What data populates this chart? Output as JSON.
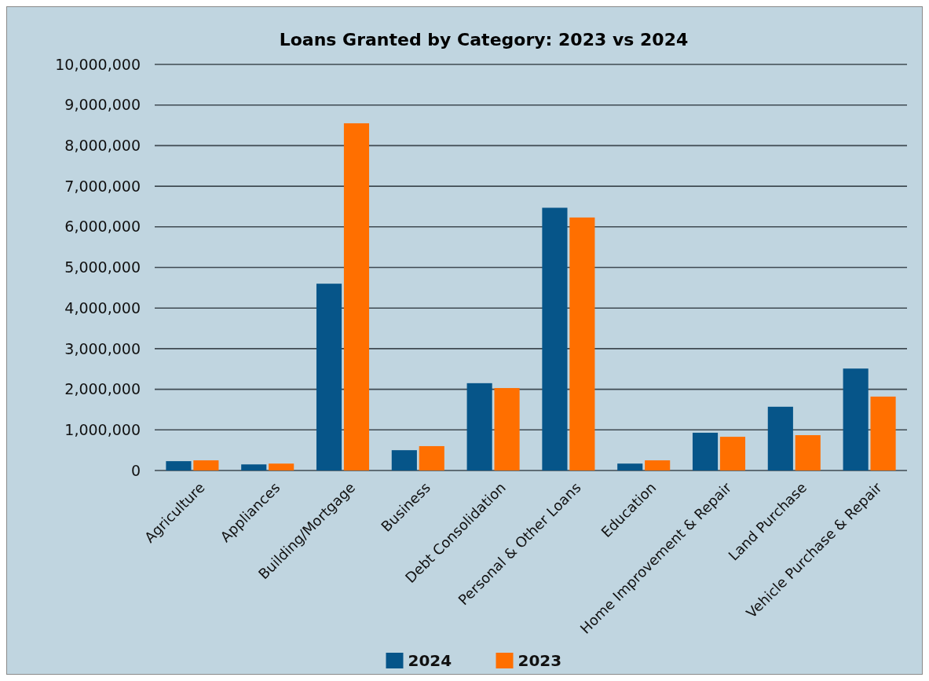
{
  "chart_data": {
    "type": "bar",
    "title": "Loans Granted by Category: 2023 vs 2024",
    "categories": [
      "Agriculture",
      "Appliances",
      "Building/Mortgage",
      "Business",
      "Debt Consolidation",
      "Personal & Other Loans",
      "Education",
      "Home Improvement & Repair",
      "Land Purchase",
      "Vehicle Purchase & Repair"
    ],
    "series": [
      {
        "name": "2024",
        "color": "#065589",
        "values": [
          230000,
          150000,
          4600000,
          500000,
          2150000,
          6470000,
          170000,
          930000,
          1570000,
          2510000
        ]
      },
      {
        "name": "2023",
        "color": "#ff6f00",
        "values": [
          250000,
          170000,
          8550000,
          600000,
          2030000,
          6230000,
          250000,
          830000,
          870000,
          1820000
        ]
      }
    ],
    "ylim": [
      0,
      10000000
    ],
    "yticks": [
      {
        "value": 0,
        "label": "0"
      },
      {
        "value": 1000000,
        "label": "1,000,000"
      },
      {
        "value": 2000000,
        "label": "2,000,000"
      },
      {
        "value": 3000000,
        "label": "3,000,000"
      },
      {
        "value": 4000000,
        "label": "4,000,000"
      },
      {
        "value": 5000000,
        "label": "5,000,000"
      },
      {
        "value": 6000000,
        "label": "6,000,000"
      },
      {
        "value": 7000000,
        "label": "7,000,000"
      },
      {
        "value": 8000000,
        "label": "8,000,000"
      },
      {
        "value": 9000000,
        "label": "9,000,000"
      },
      {
        "value": 10000000,
        "label": "10,000,000"
      }
    ],
    "grid": "y",
    "legend": "bottom"
  }
}
